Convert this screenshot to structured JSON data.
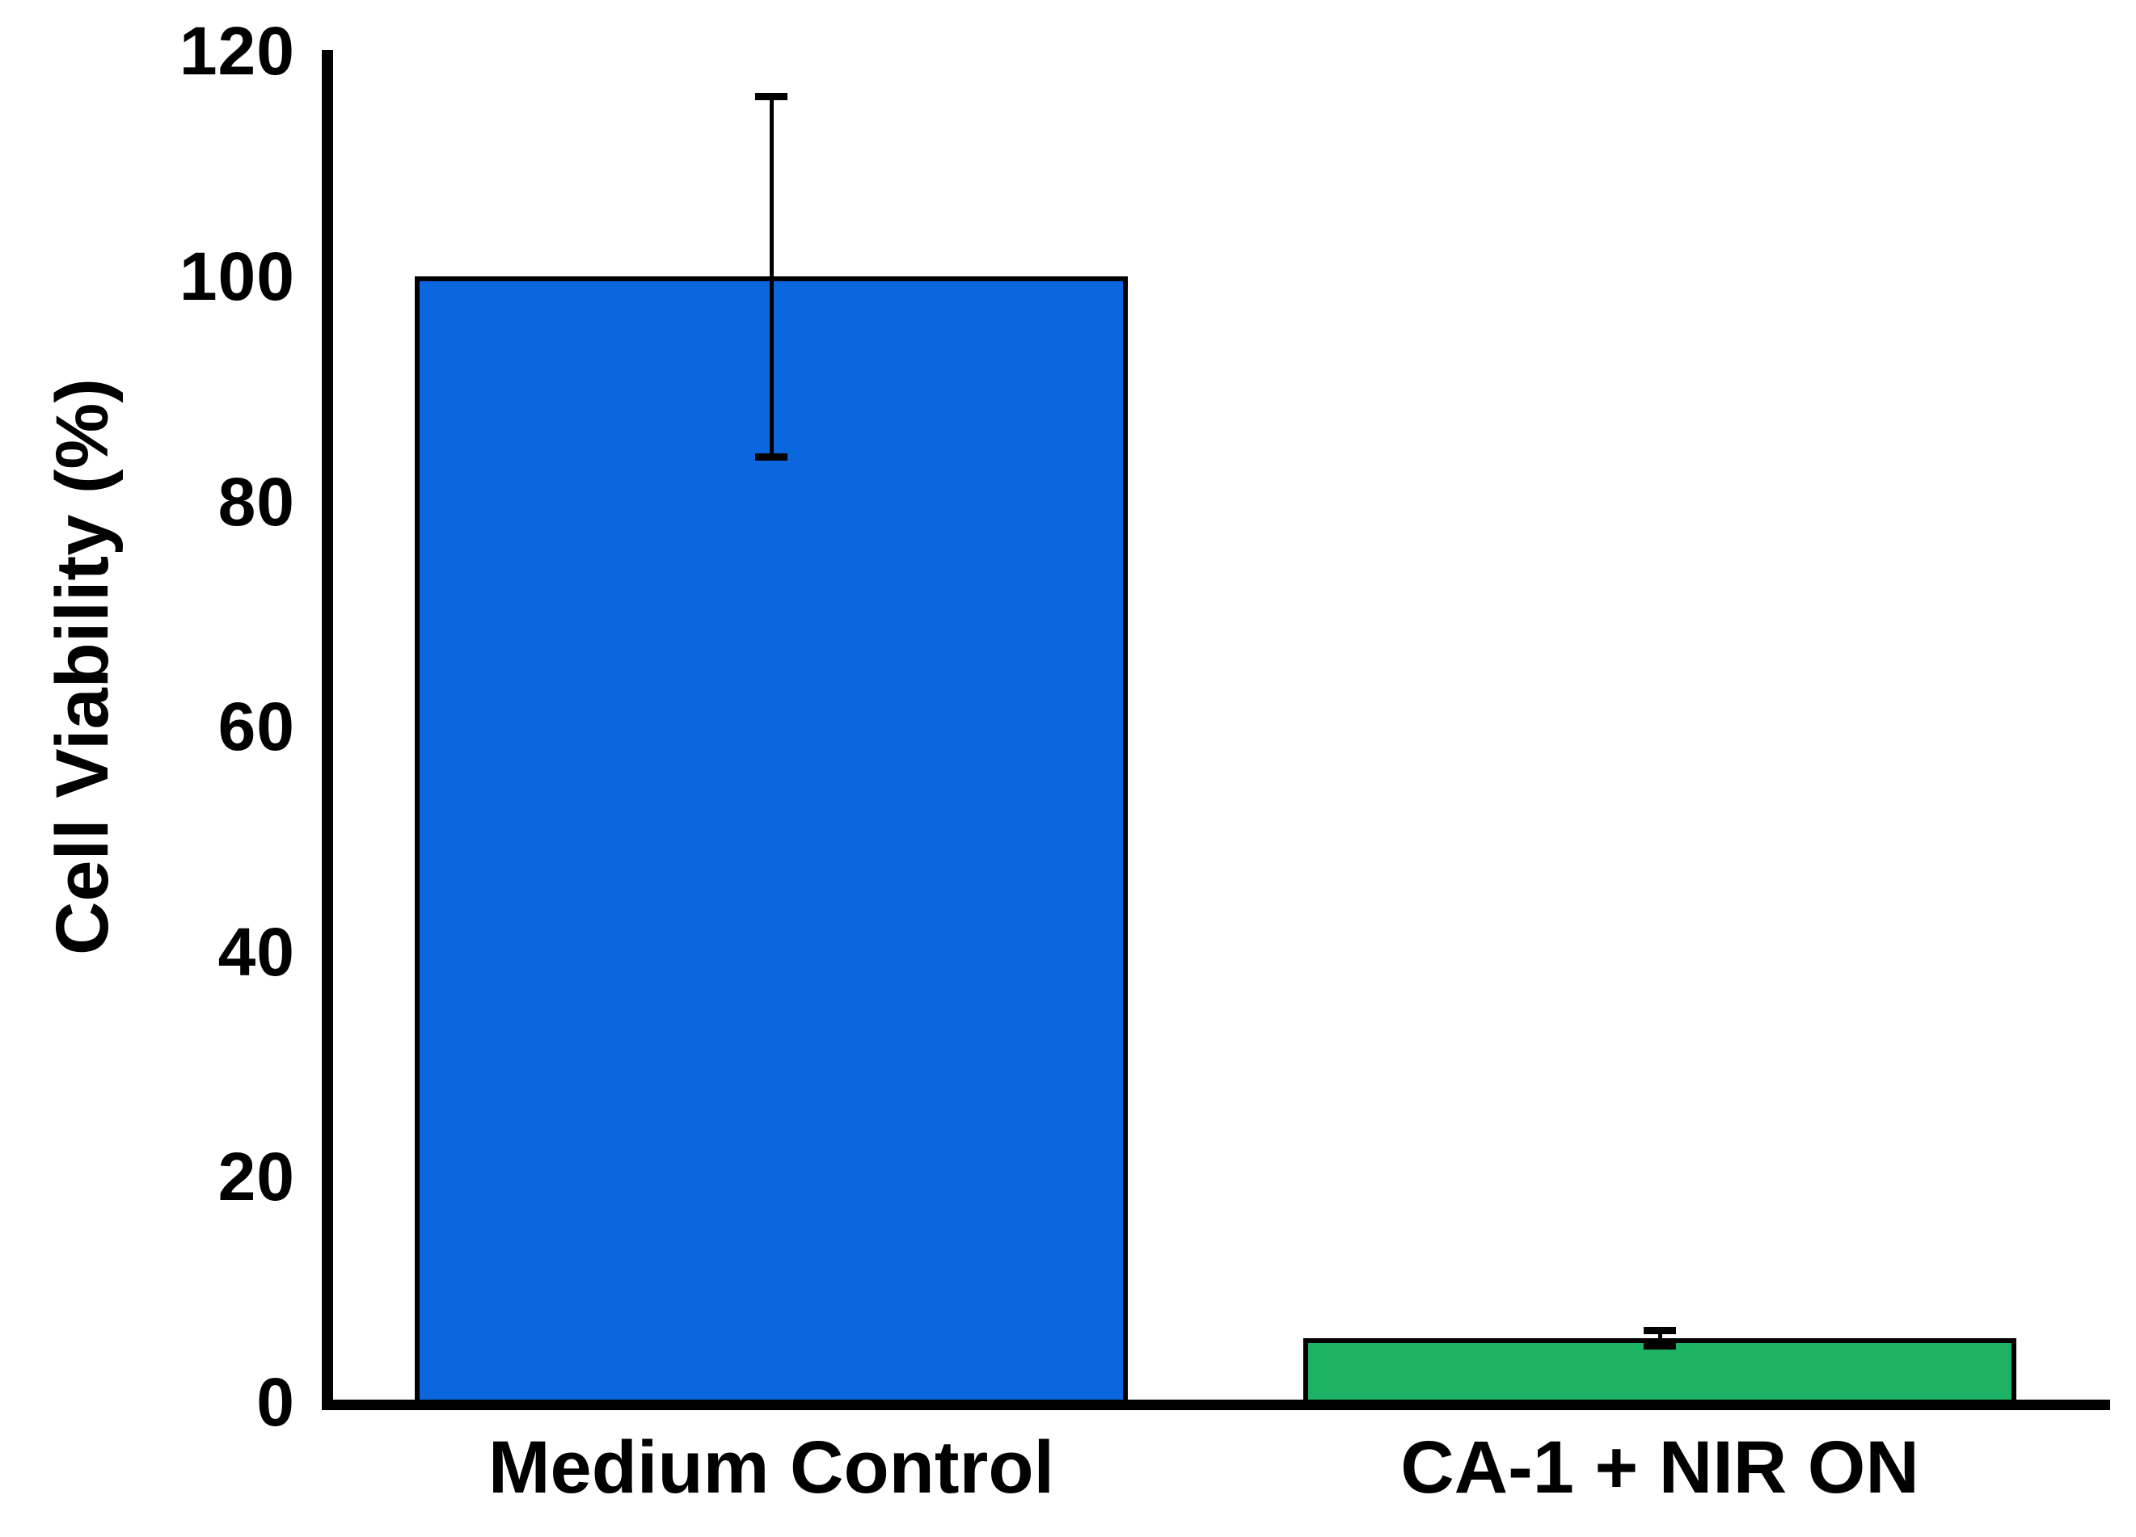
{
  "chart_data": {
    "type": "bar",
    "title": "",
    "xlabel": "",
    "ylabel": "Cell Viability (%)",
    "ylim": [
      0,
      120
    ],
    "yticks": [
      0,
      20,
      40,
      60,
      80,
      100,
      120
    ],
    "grid": false,
    "legend": false,
    "categories": [
      "Medium Control",
      "CA-1 + NIR ON"
    ],
    "values": [
      100,
      5.7
    ],
    "errors": [
      16,
      0.7
    ],
    "error_bar_style": "caps-both-ends",
    "bar_colors": [
      "#0A67DE",
      "#1EB264"
    ],
    "bar_edge_color": "#000000",
    "axis_color": "#000000",
    "background_color": "#FFFFFF"
  }
}
